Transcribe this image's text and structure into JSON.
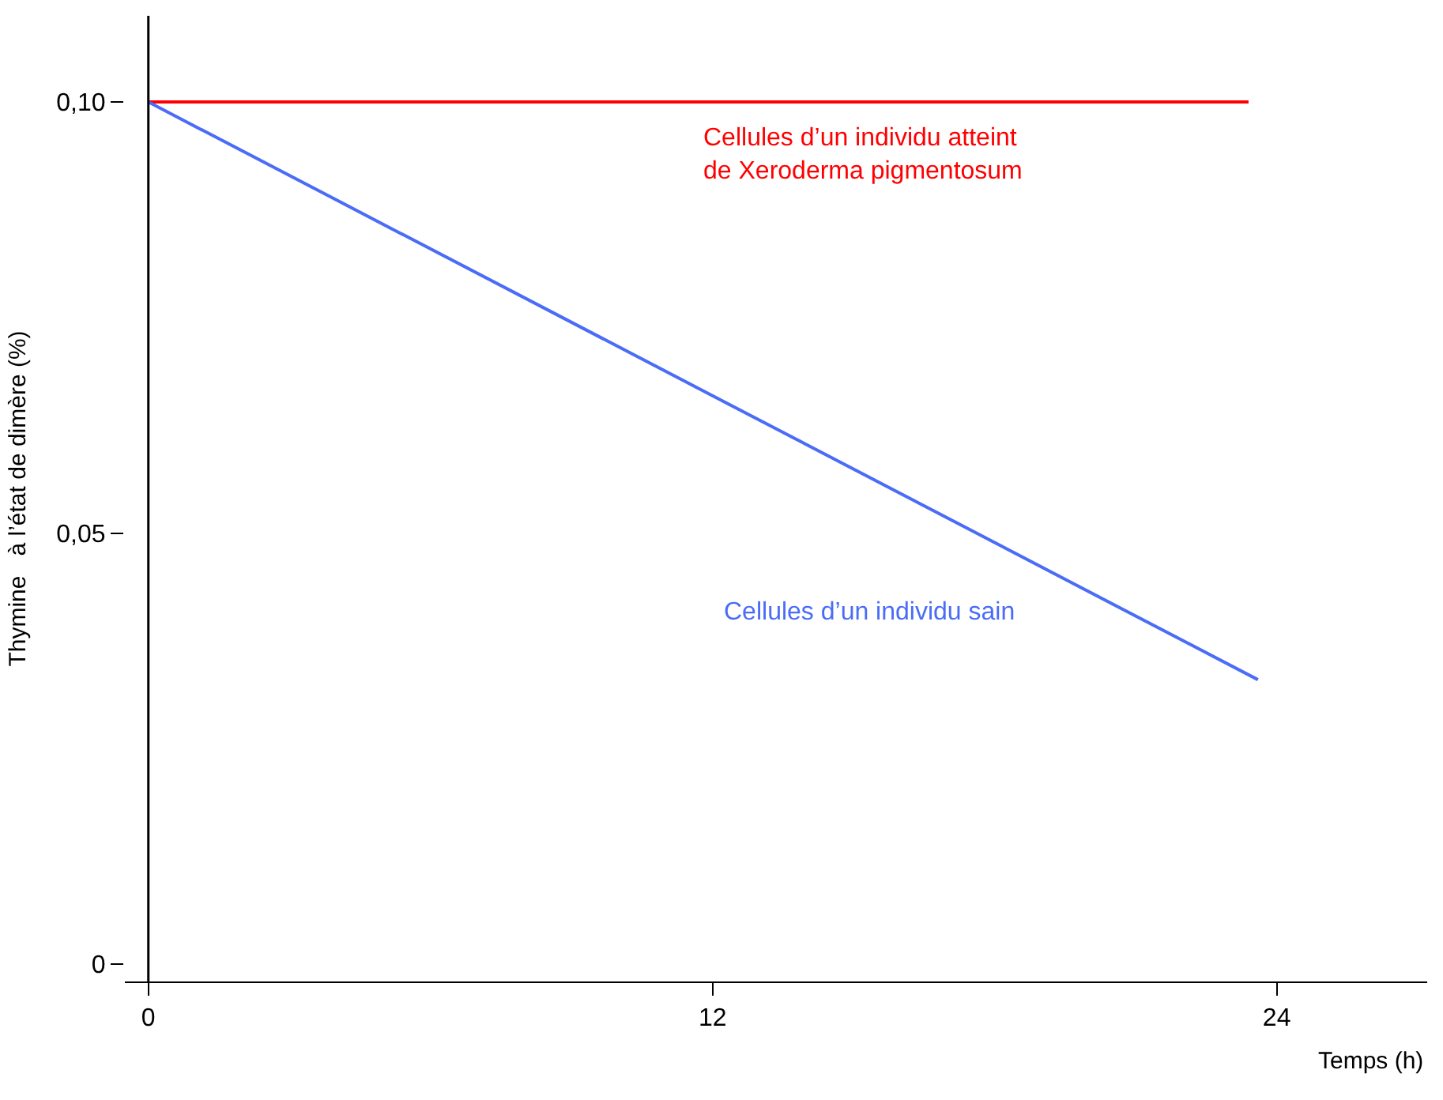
{
  "chart_data": {
    "type": "line",
    "ylabel": "Thymine   à l’état de dimère (%)",
    "xlabel": "Temps (h)",
    "xlim": [
      -0.5,
      27.2
    ],
    "ylim": [
      -0.002,
      0.11
    ],
    "xticks": [
      0,
      12,
      24
    ],
    "yticks": [
      {
        "value": 0,
        "label": "0"
      },
      {
        "value": 0.05,
        "label": "0,05"
      },
      {
        "value": 0.1,
        "label": "0,10"
      }
    ],
    "legend": false,
    "marker": "none",
    "line_style": "solid",
    "series": [
      {
        "name": "Cellules d’un individu atteint\nde Xeroderma pigmentosum",
        "color": "#ff0000",
        "x": [
          0,
          23.4
        ],
        "values": [
          0.1,
          0.1
        ]
      },
      {
        "name": "Cellules d’un individu sain",
        "color": "#4a6cf7",
        "x": [
          0,
          23.6
        ],
        "values": [
          0.1,
          0.033
        ]
      }
    ]
  }
}
